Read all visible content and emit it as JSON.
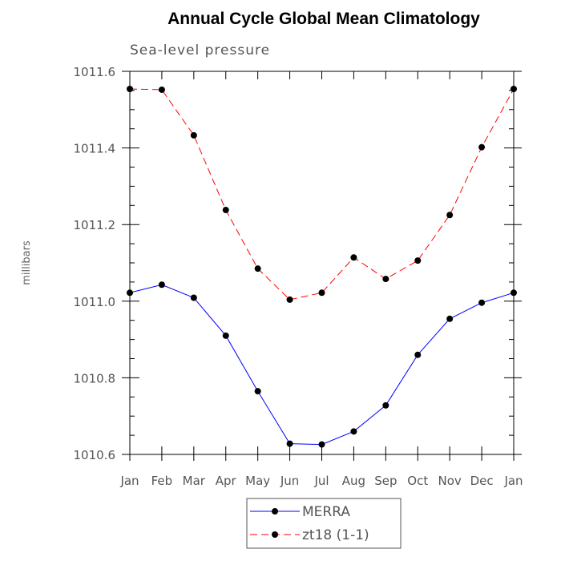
{
  "chart_data": {
    "type": "line",
    "title": "Annual Cycle Global Mean Climatology",
    "subtitle": "Sea-level pressure",
    "ylabel": "millibars",
    "xlabel": "",
    "ylim": [
      1010.6,
      1011.6
    ],
    "yticks": [
      "1010.6",
      "1010.8",
      "1011.0",
      "1011.2",
      "1011.4",
      "1011.6"
    ],
    "ytick_values": [
      1010.6,
      1010.8,
      1011.0,
      1011.2,
      1011.4,
      1011.6
    ],
    "categories": [
      "Jan",
      "Feb",
      "Mar",
      "Apr",
      "May",
      "Jun",
      "Jul",
      "Aug",
      "Sep",
      "Oct",
      "Nov",
      "Dec",
      "Jan"
    ],
    "grid": false,
    "legend_position": "bottom-center",
    "series": [
      {
        "name": "MERRA",
        "color": "#0000ff",
        "line_style": "solid",
        "values": [
          1011.022,
          1011.043,
          1011.009,
          1010.91,
          1010.765,
          1010.628,
          1010.626,
          1010.66,
          1010.728,
          1010.86,
          1010.954,
          1010.996,
          1011.022
        ]
      },
      {
        "name": "zt18 (1-1)",
        "color": "#ff0000",
        "line_style": "dashed",
        "values": [
          1011.554,
          1011.552,
          1011.433,
          1011.238,
          1011.085,
          1011.004,
          1011.022,
          1011.114,
          1011.058,
          1011.106,
          1011.225,
          1011.402,
          1011.554
        ]
      }
    ]
  }
}
